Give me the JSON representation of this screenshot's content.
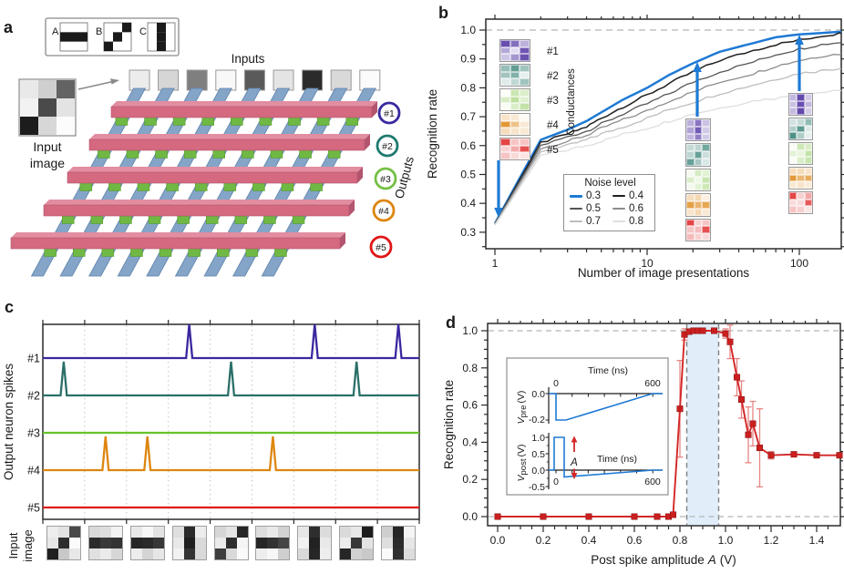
{
  "colors": {
    "accent-blue": "#1f7ad4",
    "wire-blue": "#84a5c8",
    "wire-blue-edge": "#5f84ab",
    "bar-pink": "#d4697f",
    "bar-pink-top": "#e28da0",
    "bar-pink-side": "#b3556e",
    "synapse-green": "#6fb843",
    "series-red": "#d42626",
    "error-red": "#e88585",
    "band-blue": "#d9e9f8",
    "dash-gray": "#b5b5b5"
  },
  "panel_a": {
    "label": "a",
    "patterns": [
      {
        "letter": "A",
        "cells": [
          0,
          0,
          0,
          1,
          1,
          1,
          0,
          0,
          0
        ]
      },
      {
        "letter": "B",
        "cells": [
          0,
          0,
          1,
          0,
          1,
          0,
          1,
          0,
          0
        ]
      },
      {
        "letter": "C",
        "cells": [
          0,
          1,
          0,
          0,
          1,
          0,
          0,
          1,
          0
        ]
      }
    ],
    "inputs_label": "Inputs",
    "input_squares": [
      "#ececec",
      "#d6d6d6",
      "#7f7f7f",
      "#f8f8f8",
      "#5a5a5a",
      "#e4e4e4",
      "#2b2b2b",
      "#d9d9d9",
      "#fbfbfb"
    ],
    "input_image": {
      "cells": [
        "#e9e9e9",
        "#cfcfcf",
        "#636363",
        "#f2f2f2",
        "#4a4a4a",
        "#e3e3e3",
        "#1c1c1c",
        "#d7d7d7",
        "#fcfcfc"
      ],
      "caption_lines": [
        "Input",
        "image"
      ]
    },
    "outputs_label": "Outputs",
    "outputs": [
      {
        "id": "#1",
        "color": "#392a9e"
      },
      {
        "id": "#2",
        "color": "#1e7a70"
      },
      {
        "id": "#3",
        "color": "#74c043"
      },
      {
        "id": "#4",
        "color": "#dd860f"
      },
      {
        "id": "#5",
        "color": "#e01616"
      }
    ]
  },
  "panel_b": {
    "label": "b",
    "ylabel": "Recognition rate",
    "xlabel": "Number of image presentations",
    "legend_title": "Noise level",
    "conductances_label": "Conductances",
    "neuron_labels": [
      "#1",
      "#2",
      "#3",
      "#4",
      "#5"
    ],
    "neuron_colors": [
      "#5b3fa8",
      "#2f7d72",
      "#7dc242",
      "#dd8613",
      "#e02a2a"
    ],
    "stages": [
      {
        "at_x": 1,
        "maps": [
          [
            0.92,
            0.75,
            0.4,
            0.45,
            0.18,
            0.88,
            0.3,
            0.55,
            0.9
          ],
          [
            0.5,
            0.75,
            0.45,
            0.45,
            0.6,
            0.12,
            0.15,
            0.3,
            0.45
          ],
          [
            0.04,
            0.4,
            0.28,
            0.3,
            0.5,
            0.25,
            0.05,
            0.28,
            0.45
          ],
          [
            0.22,
            0.18,
            0.05,
            0.85,
            0.5,
            0.18,
            0.28,
            0.22,
            0.18
          ],
          [
            0.88,
            0.28,
            0.28,
            0.22,
            0.4,
            0.82,
            0.28,
            0.18,
            0.12
          ]
        ]
      },
      {
        "at_x": 20,
        "maps": [
          [
            0.42,
            0.72,
            0.32,
            0.48,
            0.85,
            0.28,
            0.38,
            0.68,
            0.28
          ],
          [
            0.28,
            0.32,
            0.68,
            0.32,
            0.72,
            0.25,
            0.72,
            0.42,
            0.18
          ],
          [
            0.08,
            0.32,
            0.22,
            0.28,
            0.12,
            0.42,
            0.08,
            0.22,
            0.38
          ],
          [
            0.28,
            0.32,
            0.12,
            0.78,
            0.62,
            0.72,
            0.22,
            0.32,
            0.18
          ],
          [
            0.88,
            0.22,
            0.28,
            0.28,
            0.32,
            0.82,
            0.32,
            0.22,
            0.18
          ]
        ]
      },
      {
        "at_x": 100,
        "maps": [
          [
            0.38,
            0.95,
            0.28,
            0.32,
            0.92,
            0.38,
            0.36,
            0.95,
            0.26
          ],
          [
            0.22,
            0.28,
            0.52,
            0.38,
            0.78,
            0.16,
            0.85,
            0.38,
            0.12
          ],
          [
            0.05,
            0.38,
            0.28,
            0.22,
            0.18,
            0.48,
            0.05,
            0.28,
            0.42
          ],
          [
            0.28,
            0.28,
            0.22,
            0.85,
            0.58,
            0.68,
            0.18,
            0.22,
            0.16
          ],
          [
            0.88,
            0.22,
            0.42,
            0.18,
            0.18,
            0.78,
            0.28,
            0.22,
            0.12
          ]
        ]
      }
    ]
  },
  "panel_c": {
    "label": "c",
    "ylabel": "Output neuron spikes",
    "caption_lines": [
      "Input",
      "image"
    ],
    "images": [
      [
        "#ededed",
        "#e2e2e2",
        "#4a4a4a",
        "#e6e6e6",
        "#2e2e2e",
        "#fbfbfb",
        "#1f1f1f",
        "#c8c8c8",
        "#e8e8e8"
      ],
      [
        "#d9d9d9",
        "#dddddd",
        "#f2f2f2",
        "#2b2b2b",
        "#3a3a3a",
        "#333333",
        "#e0e0e0",
        "#ebebeb",
        "#d6d6d6"
      ],
      [
        "#e8e8e8",
        "#f7f7f7",
        "#e3e3e3",
        "#262626",
        "#2b2b2b",
        "#383838",
        "#ededed",
        "#d4d4d4",
        "#e6e6e6"
      ],
      [
        "#dedede",
        "#2a2a2a",
        "#ededed",
        "#e8e8e8",
        "#1f1f1f",
        "#dadada",
        "#f2f2f2",
        "#333333",
        "#d9d9d9"
      ],
      [
        "#d6d6d6",
        "#e3e3e3",
        "#262626",
        "#ebebeb",
        "#2e2e2e",
        "#f5f5f5",
        "#3d3d3d",
        "#d9d9d9",
        "#fafafa"
      ],
      [
        "#dddddd",
        "#e9e9e9",
        "#d2d2d2",
        "#262626",
        "#333333",
        "#444444",
        "#ededed",
        "#f7f7f7",
        "#cfcfcf"
      ],
      [
        "#e6e6e6",
        "#2e2e2e",
        "#dcdcdc",
        "#f2f2f2",
        "#222222",
        "#e9e9e9",
        "#d9d9d9",
        "#262626",
        "#eeeeee"
      ],
      [
        "#dadada",
        "#e8e8e8",
        "#1d1d1d",
        "#ededed",
        "#383838",
        "#e3e3e3",
        "#262626",
        "#d2d2d2",
        "#c9c9c9"
      ],
      [
        "#cfcfcf",
        "#262626",
        "#f5f5f5",
        "#dedede",
        "#2b2b2b",
        "#e6e6e6",
        "#fafafa",
        "#303030",
        "#dcdcdc"
      ]
    ]
  },
  "panel_d": {
    "label": "d",
    "ylabel": "Recognition rate",
    "xlabel_parts": [
      "Post spike amplitude",
      "A",
      "(V)"
    ],
    "inset": {
      "pre": {
        "title": "Time (ns)",
        "x_ticks": [
          "0",
          "600"
        ],
        "y_ticks": [
          "0.0",
          "-0.2"
        ],
        "ylabel_main": "V",
        "ylabel_sub": "pre",
        "ylabel_unit": "(V)"
      },
      "post": {
        "time_label": "Time (ns)",
        "x_ticks": [
          "0",
          "600"
        ],
        "y_ticks": [
          "1.0",
          "0.5",
          "0.0",
          "-0.5"
        ],
        "ylabel_main": "V",
        "ylabel_sub": "post",
        "ylabel_unit": "(V)",
        "amplitude_label": "A"
      }
    }
  },
  "chart_data": {
    "panel_b": {
      "type": "line",
      "xscale": "log",
      "title": "",
      "xlabel": "Number of image presentations",
      "ylabel": "Recognition rate",
      "xlim": [
        0.87,
        200
      ],
      "ylim": [
        0.245,
        1.04
      ],
      "xticks": [
        1,
        10,
        100
      ],
      "yticks": [
        0.3,
        0.4,
        0.5,
        0.6,
        0.7,
        0.8,
        0.9,
        1.0
      ],
      "reference_line_y": 1.0,
      "legend_position": "lower center",
      "x": [
        1,
        2,
        3,
        4,
        5,
        7,
        10,
        14,
        20,
        30,
        50,
        70,
        100,
        140,
        200
      ],
      "series": [
        {
          "name": "0.3",
          "color": "#1f7ad4",
          "values": [
            0.33,
            0.62,
            0.655,
            0.685,
            0.715,
            0.76,
            0.8,
            0.845,
            0.885,
            0.925,
            0.955,
            0.975,
            0.985,
            0.99,
            0.995
          ]
        },
        {
          "name": "0.4",
          "color": "#1f1f1f",
          "values": [
            0.33,
            0.61,
            0.64,
            0.665,
            0.695,
            0.735,
            0.775,
            0.815,
            0.855,
            0.895,
            0.93,
            0.95,
            0.965,
            0.98,
            0.99
          ]
        },
        {
          "name": "0.5",
          "color": "#555555",
          "values": [
            0.33,
            0.6,
            0.63,
            0.65,
            0.675,
            0.71,
            0.745,
            0.78,
            0.82,
            0.855,
            0.89,
            0.915,
            0.935,
            0.95,
            0.96
          ]
        },
        {
          "name": "0.6",
          "color": "#8c8c8c",
          "values": [
            0.33,
            0.59,
            0.615,
            0.635,
            0.66,
            0.69,
            0.72,
            0.755,
            0.785,
            0.82,
            0.85,
            0.875,
            0.895,
            0.91,
            0.92
          ]
        },
        {
          "name": "0.7",
          "color": "#bdbdbd",
          "values": [
            0.325,
            0.58,
            0.6,
            0.62,
            0.64,
            0.665,
            0.695,
            0.725,
            0.75,
            0.78,
            0.81,
            0.83,
            0.85,
            0.86,
            0.87
          ]
        },
        {
          "name": "0.8",
          "color": "#dedede",
          "values": [
            0.325,
            0.565,
            0.585,
            0.6,
            0.615,
            0.64,
            0.66,
            0.685,
            0.71,
            0.73,
            0.755,
            0.765,
            0.775,
            0.785,
            0.79
          ]
        }
      ],
      "arrows_at_x": [
        1,
        20,
        100
      ]
    },
    "panel_c": {
      "type": "spike-raster",
      "ylabel": "Output neuron spikes",
      "n_time_slots": 9,
      "slot_patterns": [
        "B",
        "A",
        "A",
        "C",
        "B",
        "A",
        "C",
        "B",
        "C"
      ],
      "traces": [
        {
          "name": "#1",
          "color": "#3a28a0",
          "spike_slots": [
            4,
            7,
            9
          ]
        },
        {
          "name": "#2",
          "color": "#2a7068",
          "spike_slots": [
            1,
            5,
            8
          ]
        },
        {
          "name": "#3",
          "color": "#66c42a",
          "spike_slots": []
        },
        {
          "name": "#4",
          "color": "#dd860f",
          "spike_slots": [
            2,
            3,
            6
          ]
        },
        {
          "name": "#5",
          "color": "#e01616",
          "spike_slots": []
        }
      ]
    },
    "panel_d": {
      "type": "line",
      "xlabel": "Post spike amplitude A (V)",
      "ylabel": "Recognition rate",
      "xlim": [
        -0.05,
        1.5
      ],
      "ylim": [
        -0.05,
        1.04
      ],
      "xticks": [
        0.0,
        0.2,
        0.4,
        0.6,
        0.8,
        1.0,
        1.2,
        1.4
      ],
      "yticks": [
        0.0,
        0.2,
        0.4,
        0.6,
        0.8,
        1.0
      ],
      "shaded_band_x": [
        0.83,
        0.97
      ],
      "dashed_y": [
        0.0,
        1.0
      ],
      "color": "#d42626",
      "points": [
        {
          "x": 0.0,
          "y": 0.0,
          "err": 0
        },
        {
          "x": 0.2,
          "y": 0.0,
          "err": 0
        },
        {
          "x": 0.4,
          "y": 0.0,
          "err": 0
        },
        {
          "x": 0.6,
          "y": 0.0,
          "err": 0
        },
        {
          "x": 0.7,
          "y": 0.0,
          "err": 0
        },
        {
          "x": 0.75,
          "y": 0.0,
          "err": 0
        },
        {
          "x": 0.77,
          "y": 0.01,
          "err": 0
        },
        {
          "x": 0.8,
          "y": 0.58,
          "err": 0.26
        },
        {
          "x": 0.82,
          "y": 0.98,
          "err": 0.03
        },
        {
          "x": 0.84,
          "y": 0.995,
          "err": 0.01
        },
        {
          "x": 0.86,
          "y": 1.0,
          "err": 0.005
        },
        {
          "x": 0.88,
          "y": 1.0,
          "err": 0.005
        },
        {
          "x": 0.9,
          "y": 1.0,
          "err": 0.005
        },
        {
          "x": 0.95,
          "y": 1.0,
          "err": 0.01
        },
        {
          "x": 1.0,
          "y": 0.985,
          "err": 0.025
        },
        {
          "x": 1.02,
          "y": 0.94,
          "err": 0.09
        },
        {
          "x": 1.05,
          "y": 0.75,
          "err": 0.1
        },
        {
          "x": 1.07,
          "y": 0.63,
          "err": 0.1
        },
        {
          "x": 1.1,
          "y": 0.44,
          "err": 0.15
        },
        {
          "x": 1.12,
          "y": 0.5,
          "err": 0.12
        },
        {
          "x": 1.15,
          "y": 0.37,
          "err": 0.21
        },
        {
          "x": 1.2,
          "y": 0.33,
          "err": 0.02
        },
        {
          "x": 1.3,
          "y": 0.335,
          "err": 0.01
        },
        {
          "x": 1.4,
          "y": 0.33,
          "err": 0.01
        },
        {
          "x": 1.5,
          "y": 0.33,
          "err": 0.01
        }
      ]
    }
  }
}
